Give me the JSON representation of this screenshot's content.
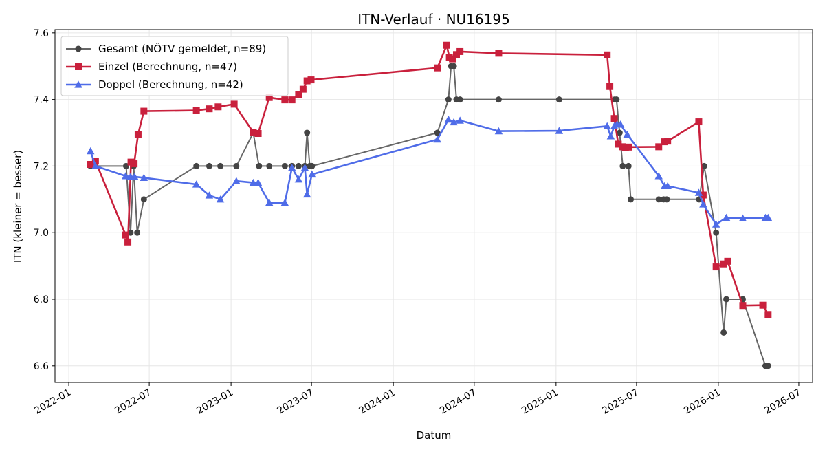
{
  "chart_data": {
    "type": "line",
    "title": "ITN-Verlauf · NU16195",
    "xlabel": "Datum",
    "ylabel": "ITN  (kleiner = besser)",
    "x_axis_type": "date",
    "xlim": [
      "2021-12-01",
      "2026-08-01"
    ],
    "ylim": [
      6.55,
      7.61
    ],
    "x_ticks": [
      "2022-01",
      "2022-07",
      "2023-01",
      "2023-07",
      "2024-01",
      "2024-07",
      "2025-01",
      "2025-07",
      "2026-01",
      "2026-07"
    ],
    "y_ticks": [
      "6.6",
      "6.8",
      "7.0",
      "7.2",
      "7.4",
      "7.6"
    ],
    "grid": true,
    "legend_position": "top-left",
    "series": [
      {
        "name": "Gesamt (NÖTV gemeldet, n=89)",
        "color": "#666666",
        "marker": "circle",
        "points": [
          [
            "2022-02-19",
            7.2
          ],
          [
            "2022-05-10",
            7.2
          ],
          [
            "2022-05-20",
            7.0
          ],
          [
            "2022-05-27",
            7.2
          ],
          [
            "2022-06-04",
            7.0
          ],
          [
            "2022-06-19",
            7.1
          ],
          [
            "2022-10-15",
            7.2
          ],
          [
            "2022-11-13",
            7.2
          ],
          [
            "2022-12-08",
            7.2
          ],
          [
            "2023-01-13",
            7.2
          ],
          [
            "2023-02-20",
            7.3
          ],
          [
            "2023-03-05",
            7.2
          ],
          [
            "2023-03-28",
            7.2
          ],
          [
            "2023-05-02",
            7.2
          ],
          [
            "2023-05-18",
            7.2
          ],
          [
            "2023-06-02",
            7.2
          ],
          [
            "2023-06-16",
            7.2
          ],
          [
            "2023-06-21",
            7.3
          ],
          [
            "2023-06-27",
            7.2
          ],
          [
            "2023-07-02",
            7.2
          ],
          [
            "2024-04-09",
            7.3
          ],
          [
            "2024-05-04",
            7.4
          ],
          [
            "2024-05-10",
            7.5
          ],
          [
            "2024-05-16",
            7.5
          ],
          [
            "2024-05-22",
            7.4
          ],
          [
            "2024-05-30",
            7.4
          ],
          [
            "2024-08-25",
            7.4
          ],
          [
            "2025-01-08",
            7.4
          ],
          [
            "2025-05-13",
            7.4
          ],
          [
            "2025-05-17",
            7.4
          ],
          [
            "2025-05-24",
            7.3
          ],
          [
            "2025-05-31",
            7.2
          ],
          [
            "2025-06-13",
            7.2
          ],
          [
            "2025-06-18",
            7.1
          ],
          [
            "2025-08-20",
            7.1
          ],
          [
            "2025-08-31",
            7.1
          ],
          [
            "2025-09-07",
            7.1
          ],
          [
            "2025-11-19",
            7.1
          ],
          [
            "2025-11-30",
            7.2
          ],
          [
            "2025-12-27",
            7.0
          ],
          [
            "2026-01-13",
            6.7
          ],
          [
            "2026-01-19",
            6.8
          ],
          [
            "2026-02-25",
            6.8
          ],
          [
            "2026-04-17",
            6.6
          ],
          [
            "2026-04-23",
            6.6
          ]
        ]
      },
      {
        "name": "Einzel (Berechnung, n=47)",
        "color": "#c9203c",
        "marker": "square",
        "points": [
          [
            "2022-02-19",
            7.205
          ],
          [
            "2022-03-02",
            7.215
          ],
          [
            "2022-05-09",
            6.993
          ],
          [
            "2022-05-14",
            6.972
          ],
          [
            "2022-05-21",
            7.212
          ],
          [
            "2022-05-28",
            7.207
          ],
          [
            "2022-06-06",
            7.295
          ],
          [
            "2022-06-19",
            7.365
          ],
          [
            "2022-10-15",
            7.367
          ],
          [
            "2022-11-13",
            7.372
          ],
          [
            "2022-12-03",
            7.378
          ],
          [
            "2023-01-08",
            7.386
          ],
          [
            "2023-02-20",
            7.302
          ],
          [
            "2023-03-03",
            7.298
          ],
          [
            "2023-03-28",
            7.406
          ],
          [
            "2023-05-02",
            7.399
          ],
          [
            "2023-05-18",
            7.399
          ],
          [
            "2023-06-02",
            7.414
          ],
          [
            "2023-06-12",
            7.431
          ],
          [
            "2023-06-21",
            7.456
          ],
          [
            "2023-06-30",
            7.459
          ],
          [
            "2024-04-09",
            7.495
          ],
          [
            "2024-04-30",
            7.563
          ],
          [
            "2024-05-06",
            7.527
          ],
          [
            "2024-05-13",
            7.522
          ],
          [
            "2024-05-22",
            7.535
          ],
          [
            "2024-05-30",
            7.544
          ],
          [
            "2024-08-25",
            7.539
          ],
          [
            "2025-04-26",
            7.534
          ],
          [
            "2025-05-02",
            7.439
          ],
          [
            "2025-05-12",
            7.343
          ],
          [
            "2025-05-21",
            7.266
          ],
          [
            "2025-05-30",
            7.258
          ],
          [
            "2025-06-06",
            7.256
          ],
          [
            "2025-06-13",
            7.257
          ],
          [
            "2025-08-20",
            7.258
          ],
          [
            "2025-09-02",
            7.273
          ],
          [
            "2025-09-09",
            7.275
          ],
          [
            "2025-11-18",
            7.333
          ],
          [
            "2025-11-28",
            7.113
          ],
          [
            "2025-12-27",
            6.897
          ],
          [
            "2026-01-13",
            6.906
          ],
          [
            "2026-01-22",
            6.914
          ],
          [
            "2026-02-25",
            6.781
          ],
          [
            "2026-04-11",
            6.782
          ],
          [
            "2026-04-23",
            6.754
          ]
        ]
      },
      {
        "name": "Doppel (Berechnung, n=42)",
        "color": "#4f6ce8",
        "marker": "triangle",
        "points": [
          [
            "2022-02-19",
            7.245
          ],
          [
            "2022-03-02",
            7.2
          ],
          [
            "2022-05-09",
            7.17
          ],
          [
            "2022-05-20",
            7.168
          ],
          [
            "2022-05-29",
            7.168
          ],
          [
            "2022-06-19",
            7.165
          ],
          [
            "2022-10-15",
            7.145
          ],
          [
            "2022-11-13",
            7.112
          ],
          [
            "2022-12-08",
            7.1
          ],
          [
            "2023-01-13",
            7.155
          ],
          [
            "2023-02-20",
            7.15
          ],
          [
            "2023-03-03",
            7.15
          ],
          [
            "2023-03-28",
            7.09
          ],
          [
            "2023-05-02",
            7.09
          ],
          [
            "2023-05-18",
            7.195
          ],
          [
            "2023-06-02",
            7.16
          ],
          [
            "2023-06-16",
            7.195
          ],
          [
            "2023-06-21",
            7.115
          ],
          [
            "2023-07-02",
            7.175
          ],
          [
            "2024-04-09",
            7.28
          ],
          [
            "2024-05-04",
            7.34
          ],
          [
            "2024-05-16",
            7.332
          ],
          [
            "2024-05-30",
            7.337
          ],
          [
            "2024-08-25",
            7.305
          ],
          [
            "2025-01-08",
            7.306
          ],
          [
            "2025-04-26",
            7.32
          ],
          [
            "2025-05-04",
            7.29
          ],
          [
            "2025-05-12",
            7.32
          ],
          [
            "2025-05-18",
            7.325
          ],
          [
            "2025-05-26",
            7.325
          ],
          [
            "2025-06-10",
            7.295
          ],
          [
            "2025-08-20",
            7.17
          ],
          [
            "2025-09-02",
            7.14
          ],
          [
            "2025-09-09",
            7.14
          ],
          [
            "2025-11-18",
            7.12
          ],
          [
            "2025-11-28",
            7.085
          ],
          [
            "2025-12-27",
            7.025
          ],
          [
            "2026-01-19",
            7.045
          ],
          [
            "2026-02-25",
            7.043
          ],
          [
            "2026-04-17",
            7.045
          ],
          [
            "2026-04-23",
            7.045
          ]
        ]
      }
    ]
  }
}
